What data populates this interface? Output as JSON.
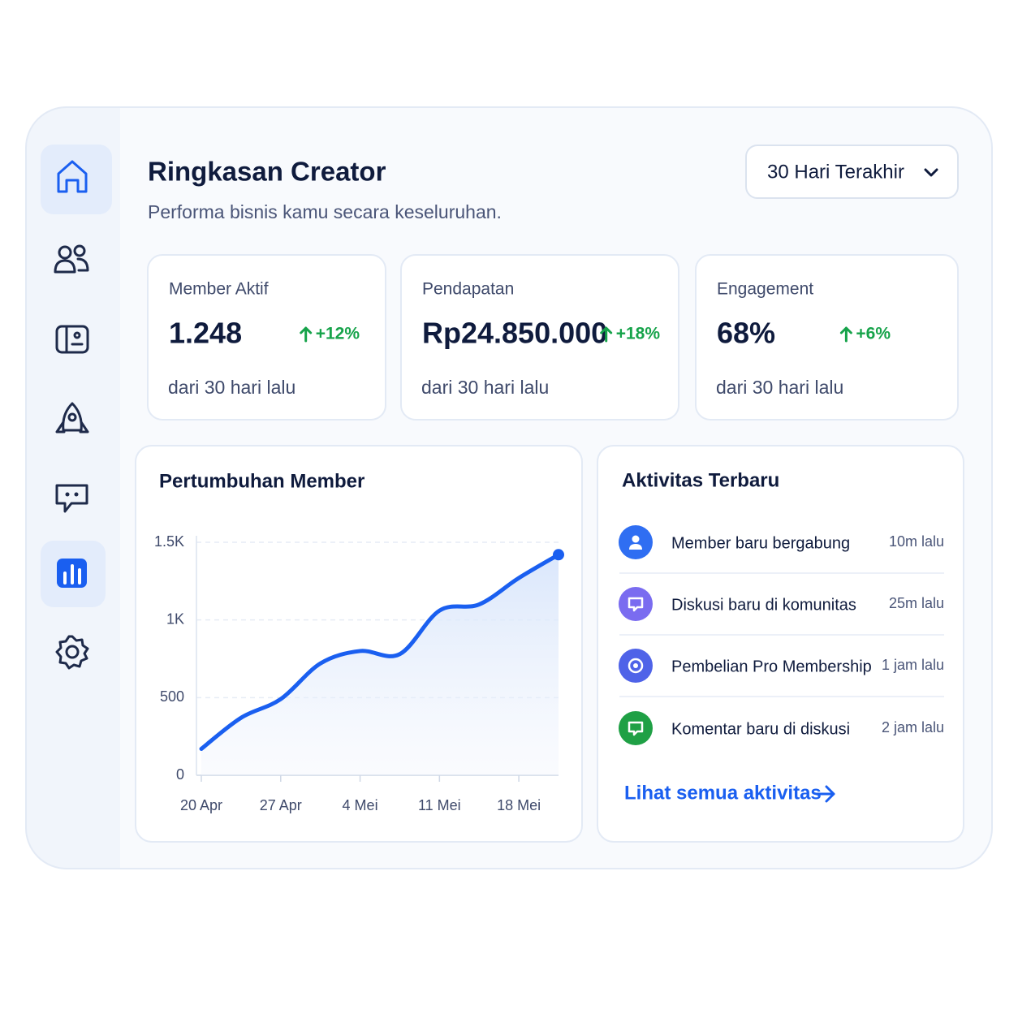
{
  "header": {
    "title": "Ringkasan Creator",
    "subtitle": "Performa bisnis kamu secara keseluruhan.",
    "period": "30 Hari Terakhir"
  },
  "stats": [
    {
      "label": "Member Aktif",
      "value": "1.248",
      "change": "+12%",
      "note": "dari 30 hari lalu"
    },
    {
      "label": "Pendapatan",
      "value": "Rp24.850.000",
      "change": "+18%",
      "note": "dari 30 hari lalu"
    },
    {
      "label": "Engagement",
      "value": "68%",
      "change": "+6%",
      "note": "dari 30 hari lalu"
    }
  ],
  "chart_data": {
    "type": "line",
    "title": "Pertumbuhan Member",
    "categories": [
      "20 Apr",
      null,
      "27 Apr",
      null,
      "4 Mei",
      null,
      "11 Mei",
      null,
      "18 Mei",
      null
    ],
    "values": [
      170,
      370,
      490,
      720,
      800,
      780,
      1060,
      1100,
      1270,
      1420
    ],
    "color": "#1a5ff0",
    "ylim": [
      0,
      1500
    ],
    "yticks": [
      0,
      500,
      {
        "value": 1000,
        "label": "1K"
      },
      {
        "value": 1500,
        "label": "1.5K"
      }
    ],
    "grid": true
  },
  "activity": {
    "title": "Aktivitas Terbaru",
    "items": [
      {
        "text": "Member baru bergabung",
        "time": "10m lalu"
      },
      {
        "text": "Diskusi baru di komunitas",
        "time": "25m lalu"
      },
      {
        "text": "Pembelian Pro Membership",
        "time": "1 jam lalu"
      },
      {
        "text": "Komentar baru di diskusi",
        "time": "2 jam lalu"
      }
    ],
    "link": "Lihat semua aktivitas"
  }
}
